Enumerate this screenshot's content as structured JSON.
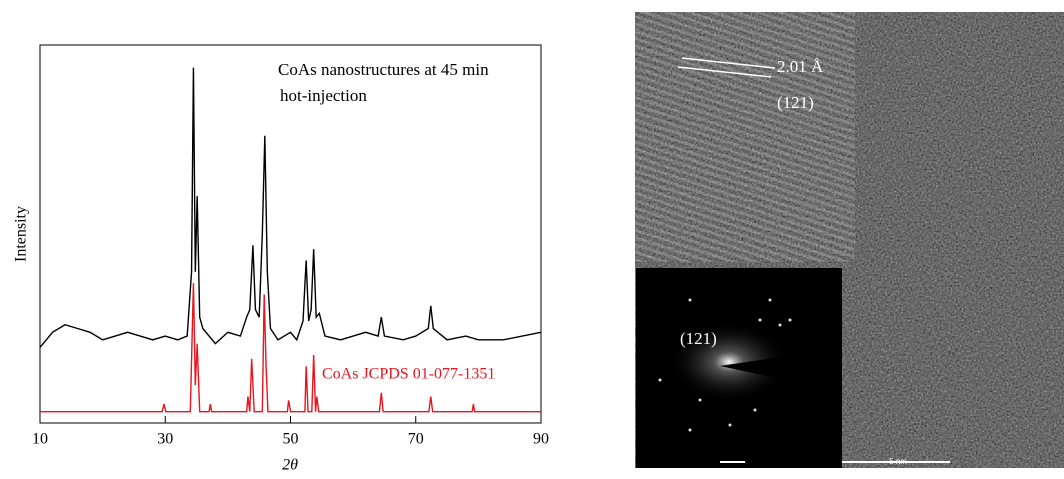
{
  "chart_data": {
    "type": "line",
    "xlabel": "2θ",
    "ylabel": "Intensity",
    "annotations": [
      "CoAs nanostructures at 45 min",
      "hot-injection"
    ],
    "xlim": [
      10,
      90
    ],
    "xticks": [
      10,
      30,
      50,
      70,
      90
    ],
    "ylim": [
      0,
      100
    ],
    "series": [
      {
        "color": "#000000",
        "x": [
          10,
          12,
          14,
          16,
          18,
          20,
          22,
          24,
          26,
          28,
          30,
          32,
          33.5,
          34.2,
          34.5,
          34.8,
          35.1,
          35.5,
          36,
          38,
          40,
          42,
          43,
          43.5,
          44,
          44.4,
          45,
          45.5,
          45.9,
          46.3,
          46.8,
          48,
          50,
          51,
          52,
          52.5,
          52.9,
          53.3,
          53.7,
          54.1,
          54.6,
          55.5,
          58,
          60,
          62,
          64,
          64.5,
          65,
          68,
          70,
          72,
          72.4,
          72.8,
          75,
          78,
          80,
          84,
          87,
          90
        ],
        "values": [
          20,
          24,
          26,
          25,
          24,
          22,
          23,
          24,
          23,
          22,
          23,
          22,
          23,
          40,
          94,
          40,
          60,
          28,
          25,
          21,
          24,
          23,
          28,
          30,
          47,
          30,
          28,
          50,
          76,
          40,
          25,
          22,
          24,
          22,
          27,
          43,
          27,
          30,
          46,
          28,
          29,
          23,
          22,
          23,
          24,
          23,
          28,
          23,
          22,
          23,
          25,
          31,
          25,
          22,
          23,
          22,
          22,
          23,
          24
        ]
      },
      {
        "name": "CoAs JCPDS 01-077-1351",
        "color": "#e8141e",
        "x": [
          10,
          29.5,
          29.8,
          30.1,
          34,
          34.5,
          34.8,
          35.1,
          35.5,
          37,
          37.2,
          37.4,
          43,
          43.2,
          43.5,
          43.8,
          44.2,
          45.5,
          45.8,
          46.1,
          46.4,
          49.5,
          49.7,
          50,
          52.3,
          52.5,
          52.8,
          53.4,
          53.7,
          54,
          54.2,
          54.5,
          64.2,
          64.5,
          64.8,
          72.1,
          72.4,
          72.7,
          79,
          79.2,
          79.4,
          90
        ],
        "values": [
          3,
          3,
          5,
          3,
          3,
          37,
          10,
          21,
          3,
          3,
          5,
          3,
          3,
          7,
          3,
          17,
          3,
          3,
          34,
          15,
          3,
          3,
          6,
          3,
          3,
          15,
          3,
          3,
          18,
          3,
          7,
          3,
          3,
          8,
          3,
          3,
          7,
          3,
          3,
          5,
          3,
          3
        ]
      }
    ]
  },
  "image": {
    "lattice_spacing": "2.01 Å",
    "plane_label": "(121)",
    "inset_label": "(121)",
    "scale_bar": "5 nm"
  }
}
